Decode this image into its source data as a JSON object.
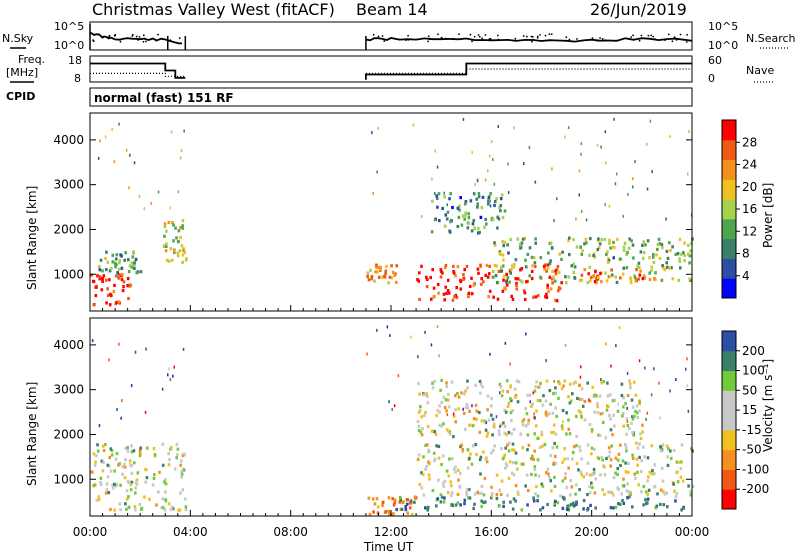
{
  "header": {
    "station": "Christmas Valley West (fitACF)",
    "beam": "Beam 14",
    "date": "26/Jun/2019"
  },
  "labels": {
    "nsky": "N.Sky",
    "nsearch": "N.Search",
    "freq_line1": "Freq.",
    "freq_line2": "[MHz]",
    "nave": "Nave",
    "cpid": "CPID",
    "mode": "normal (fast) 151 RF",
    "xlabel": "Time UT",
    "ylabel_range": "Slant Range [km]",
    "power_label": "Power [dB]",
    "velocity_label": "Velocity [m s⁻¹]"
  },
  "noise_axis": {
    "left_ticks": [
      "10^5",
      "10^0"
    ],
    "right_ticks": [
      "10^5",
      "10^0"
    ]
  },
  "freq_axis": {
    "left_ticks": [
      "18",
      "8"
    ],
    "right_ticks": [
      "60",
      "0"
    ]
  },
  "colors": {
    "power": [
      "#0000ff",
      "#2c4fa3",
      "#3b7f6a",
      "#4da64d",
      "#a6d14d",
      "#f0c020",
      "#f5901e",
      "#f05a14",
      "#ff0000"
    ],
    "velocity": [
      "#2233aa",
      "#2c4fa3",
      "#3b7f6a",
      "#6fcb3a",
      "#c8c8c8",
      "#c8c8c8",
      "#f0c020",
      "#f5901e",
      "#f05a14",
      "#ff0000"
    ]
  },
  "chart_data": [
    {
      "type": "line",
      "title": "N.Sky / N.Search",
      "x": [
        "00:00",
        "00:30",
        "01:00",
        "02:00",
        "03:00",
        "03:40",
        "11:00",
        "12:00",
        "14:00",
        "16:00",
        "18:00",
        "20:00",
        "22:00",
        "24:00"
      ],
      "series": [
        {
          "name": "N.Sky",
          "values": [
            2.5,
            1.6,
            1.3,
            1.2,
            1.0,
            0.3,
            1.1,
            1.2,
            1.3,
            1.1,
            0.8,
            0.9,
            1.2,
            1.0
          ]
        }
      ]
    },
    {
      "type": "line",
      "title": "Freq. / Nave",
      "x_times": [
        "00:00",
        "03:00",
        "03:40",
        "11:00",
        "15:00",
        "24:00"
      ],
      "series": [
        {
          "name": "Freq. [MHz]",
          "values": [
            15.5,
            12.3,
            9.0,
            10.8,
            15.5,
            15.5
          ]
        },
        {
          "name": "Nave",
          "values": [
            18,
            10,
            2,
            18,
            18,
            30
          ]
        }
      ]
    },
    {
      "type": "heatmap",
      "title": "Power [dB]",
      "xlabel": "",
      "ylabel": "Slant Range [km]",
      "x_ticks": [
        "00:00",
        "04:00",
        "08:00",
        "12:00",
        "16:00",
        "20:00",
        "00:00"
      ],
      "y_ticks": [
        1000,
        2000,
        3000,
        4000
      ],
      "ylim": [
        180,
        4600
      ],
      "colorbar": {
        "label": "Power [dB]",
        "ticks": [
          4,
          8,
          12,
          16,
          20,
          24,
          28
        ],
        "range": [
          0,
          32
        ]
      },
      "data_gap_hours": [
        3.8,
        11.0
      ],
      "features": [
        {
          "start_hour": 0.0,
          "end_hour": 1.6,
          "range_km": [
            300,
            1000
          ],
          "power_db": 30
        },
        {
          "start_hour": 0.0,
          "end_hour": 2.0,
          "range_km": [
            1000,
            1500
          ],
          "power_db": 12
        },
        {
          "start_hour": 2.9,
          "end_hour": 3.8,
          "range_km": [
            1200,
            2200
          ],
          "power_db": 18
        },
        {
          "start_hour": 11.0,
          "end_hour": 12.3,
          "range_km": [
            800,
            1200
          ],
          "power_db": 22
        },
        {
          "start_hour": 13.0,
          "end_hour": 18.8,
          "range_km": [
            400,
            1200
          ],
          "power_db": 30
        },
        {
          "start_hour": 16.0,
          "end_hour": 24.0,
          "range_km": [
            800,
            1800
          ],
          "power_db": 14
        },
        {
          "start_hour": 19.5,
          "end_hour": 22.5,
          "range_km": [
            800,
            1100
          ],
          "power_db": 26
        },
        {
          "start_hour": 13.5,
          "end_hour": 16.5,
          "range_km": [
            1900,
            2800
          ],
          "power_db": 10
        }
      ]
    },
    {
      "type": "heatmap",
      "title": "Velocity [m s^-1]",
      "xlabel": "Time UT",
      "ylabel": "Slant Range [km]",
      "x_ticks": [
        "00:00",
        "04:00",
        "08:00",
        "12:00",
        "16:00",
        "20:00",
        "00:00"
      ],
      "y_ticks": [
        1000,
        2000,
        3000,
        4000
      ],
      "ylim": [
        180,
        4600
      ],
      "colorbar": {
        "label": "Velocity [m s^-1]",
        "ticks": [
          200,
          100,
          50,
          15,
          -15,
          -50,
          -100,
          -200
        ],
        "range": [
          -250,
          250
        ]
      },
      "data_gap_hours": [
        3.8,
        11.0
      ],
      "features": [
        {
          "start_hour": 0.0,
          "end_hour": 3.8,
          "range_km": [
            300,
            1800
          ],
          "velocity": 0
        },
        {
          "start_hour": 11.0,
          "end_hour": 13.0,
          "range_km": [
            200,
            600
          ],
          "velocity": -60
        },
        {
          "start_hour": 12.0,
          "end_hour": 24.0,
          "range_km": [
            300,
            600
          ],
          "velocity": 60
        },
        {
          "start_hour": 13.0,
          "end_hour": 24.0,
          "range_km": [
            600,
            1800
          ],
          "velocity": 0
        },
        {
          "start_hour": 13.0,
          "end_hour": 22.0,
          "range_km": [
            1900,
            3200
          ],
          "velocity": 0
        }
      ]
    }
  ]
}
